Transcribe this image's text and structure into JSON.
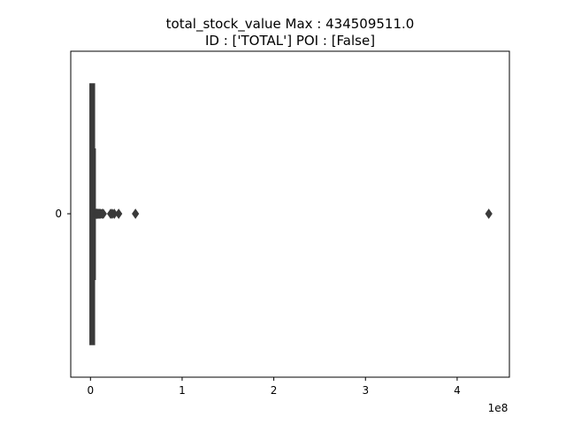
{
  "chart_data": {
    "type": "box",
    "orientation": "horizontal",
    "title_line1": "total_stock_value  Max : 434509511.0",
    "title_line2": "ID : ['TOTAL']  POI : [False]",
    "categories": [
      "0"
    ],
    "x_tick_labels": [
      "0",
      "1",
      "2",
      "3",
      "4"
    ],
    "x_ticks": [
      0,
      100000000,
      200000000,
      300000000,
      400000000
    ],
    "x_offset_label": "1e8",
    "xlim": [
      -21500000,
      457000000
    ],
    "box": {
      "q1": 500000,
      "median": 1100000,
      "q3": 2300000,
      "whisker_low": 0,
      "whisker_high": 5200000
    },
    "outliers": [
      6100000,
      6700000,
      7300000,
      8000000,
      9000000,
      10000000,
      11000000,
      12500000,
      14000000,
      22000000,
      23800000,
      26000000,
      30800000,
      49100000,
      434509511
    ],
    "grid": false,
    "colors": {
      "box": "#3a3a3a",
      "axes": "#000000"
    }
  }
}
